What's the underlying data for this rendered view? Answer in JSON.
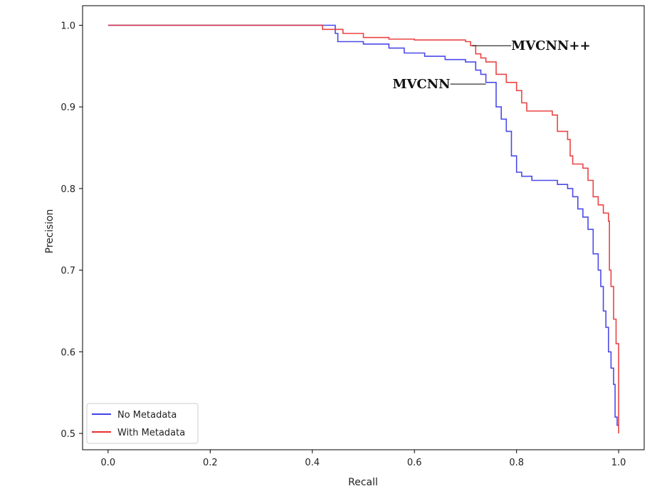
{
  "chart_data": {
    "type": "line",
    "title": "",
    "xlabel": "Recall",
    "ylabel": "Precision",
    "xlim": [
      -0.05,
      1.05
    ],
    "ylim": [
      0.48,
      1.024
    ],
    "xticks": [
      0.0,
      0.2,
      0.4,
      0.6,
      0.8,
      1.0
    ],
    "xtick_labels": [
      "0.0",
      "0.2",
      "0.4",
      "0.6",
      "0.8",
      "1.0"
    ],
    "yticks": [
      0.5,
      0.6,
      0.7,
      0.8,
      0.9,
      1.0
    ],
    "ytick_labels": [
      "0.5",
      "0.6",
      "0.7",
      "0.8",
      "0.9",
      "1.0"
    ],
    "grid": false,
    "legend_position": "bottom-left",
    "series": [
      {
        "name": "No Metadata",
        "color": "#4040e8",
        "x": [
          0.0,
          0.44,
          0.445,
          0.45,
          0.5,
          0.55,
          0.58,
          0.62,
          0.66,
          0.7,
          0.72,
          0.73,
          0.74,
          0.76,
          0.77,
          0.78,
          0.79,
          0.8,
          0.81,
          0.83,
          0.86,
          0.88,
          0.9,
          0.91,
          0.92,
          0.93,
          0.94,
          0.95,
          0.96,
          0.965,
          0.97,
          0.975,
          0.98,
          0.985,
          0.99,
          0.993,
          0.997,
          1.0
        ],
        "y": [
          1.0,
          1.0,
          0.99,
          0.98,
          0.977,
          0.972,
          0.966,
          0.962,
          0.958,
          0.955,
          0.945,
          0.94,
          0.93,
          0.9,
          0.885,
          0.87,
          0.84,
          0.82,
          0.815,
          0.81,
          0.81,
          0.805,
          0.8,
          0.79,
          0.775,
          0.765,
          0.75,
          0.72,
          0.7,
          0.68,
          0.65,
          0.63,
          0.6,
          0.58,
          0.56,
          0.52,
          0.51,
          0.51
        ]
      },
      {
        "name": "With Metadata",
        "color": "#e83030",
        "x": [
          0.0,
          0.41,
          0.42,
          0.46,
          0.5,
          0.55,
          0.6,
          0.65,
          0.7,
          0.71,
          0.72,
          0.73,
          0.74,
          0.76,
          0.78,
          0.8,
          0.81,
          0.82,
          0.84,
          0.87,
          0.88,
          0.9,
          0.905,
          0.91,
          0.93,
          0.94,
          0.95,
          0.96,
          0.97,
          0.98,
          0.982,
          0.985,
          0.99,
          0.995,
          1.0
        ],
        "y": [
          1.0,
          1.0,
          0.995,
          0.99,
          0.985,
          0.983,
          0.982,
          0.982,
          0.98,
          0.975,
          0.965,
          0.96,
          0.955,
          0.94,
          0.93,
          0.92,
          0.905,
          0.895,
          0.895,
          0.89,
          0.87,
          0.86,
          0.84,
          0.83,
          0.825,
          0.81,
          0.79,
          0.78,
          0.77,
          0.76,
          0.7,
          0.68,
          0.64,
          0.61,
          0.5
        ]
      }
    ],
    "annotations": [
      {
        "text": "MVCNN++",
        "x": 0.713,
        "y": 0.975
      },
      {
        "text": "MVCNN",
        "x": 0.74,
        "y": 0.928
      }
    ]
  }
}
